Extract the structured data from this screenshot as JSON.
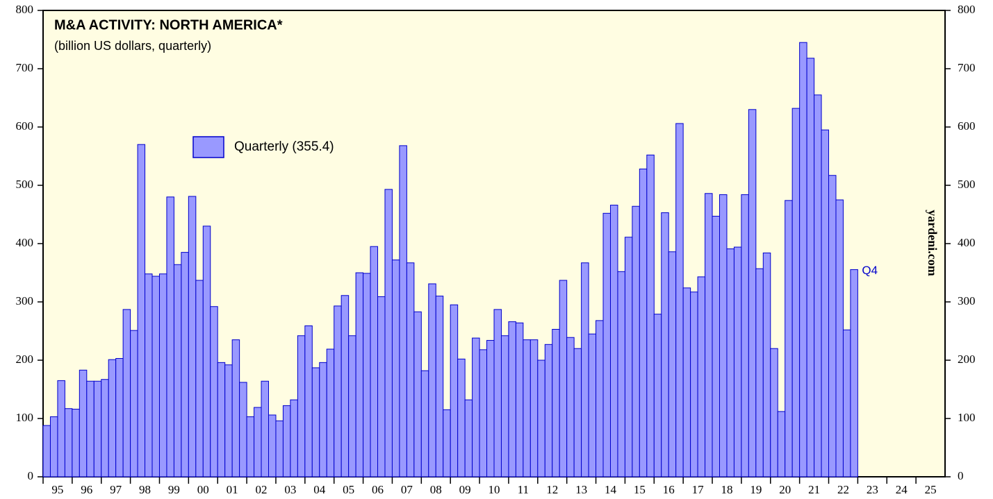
{
  "chart_data": {
    "type": "bar",
    "title": "M&A ACTIVITY: NORTH AMERICA*",
    "subtitle": "(billion US dollars, quarterly)",
    "year_labels": [
      "95",
      "96",
      "97",
      "98",
      "99",
      "00",
      "01",
      "02",
      "03",
      "04",
      "05",
      "06",
      "07",
      "08",
      "09",
      "10",
      "11",
      "12",
      "13",
      "14",
      "15",
      "16",
      "17",
      "18",
      "19",
      "20",
      "21",
      "22",
      "23",
      "24",
      "25"
    ],
    "series": [
      {
        "name": "Quarterly (355.4)",
        "color": "#9999ff",
        "values": [
          88,
          103,
          165,
          117,
          116,
          183,
          164,
          164,
          167,
          201,
          203,
          287,
          251,
          570,
          348,
          344,
          348,
          480,
          364,
          385,
          481,
          337,
          430,
          292,
          196,
          192,
          235,
          162,
          103,
          119,
          164,
          106,
          96,
          122,
          132,
          242,
          259,
          187,
          196,
          219,
          293,
          311,
          242,
          350,
          349,
          395,
          309,
          493,
          372,
          568,
          367,
          283,
          182,
          331,
          310,
          115,
          295,
          202,
          132,
          238,
          218,
          234,
          287,
          242,
          266,
          264,
          235,
          235,
          200,
          227,
          253,
          337,
          239,
          220,
          367,
          245,
          268,
          452,
          466,
          352,
          411,
          464,
          528,
          552,
          279,
          453,
          386,
          606,
          324,
          317,
          343,
          486,
          447,
          484,
          391,
          394,
          484,
          630,
          357,
          384,
          220,
          112,
          474,
          632,
          745,
          718,
          655,
          595,
          517,
          475,
          252,
          355.4
        ]
      }
    ],
    "annotation": "Q4",
    "watermark": "yardeni.com",
    "ylim": [
      0,
      800
    ],
    "yticks": [
      0,
      100,
      200,
      300,
      400,
      500,
      600,
      700,
      800
    ],
    "y2lim": [
      0,
      800
    ],
    "y2ticks": [
      0,
      100,
      200,
      300,
      400,
      500,
      600,
      700,
      800
    ],
    "legend": "upper left"
  }
}
